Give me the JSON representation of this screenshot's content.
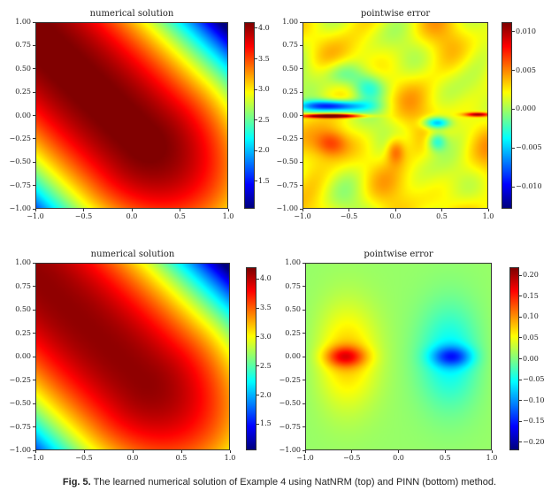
{
  "caption": {
    "label": "Fig. 5.",
    "text": "The learned numerical solution of Example 4 using NatNRM (top) and PINN (bottom) method."
  },
  "chart_data": [
    {
      "id": "top-solution",
      "type": "heatmap",
      "title": "numerical solution",
      "colormap": "jet",
      "xlim": [
        -1,
        1
      ],
      "ylim": [
        -1,
        1
      ],
      "xticks": [
        "−1.0",
        "−0.5",
        "0.0",
        "0.5",
        "1.0"
      ],
      "yticks": [
        "1.00",
        "0.75",
        "0.50",
        "0.25",
        "0.00",
        "−0.25",
        "−0.50",
        "−0.75",
        "−1.00"
      ],
      "colorbar": {
        "range": [
          1.05,
          4.1
        ],
        "ticks": [
          "4.0",
          "3.5",
          "3.0",
          "2.5",
          "2.0",
          "1.5"
        ],
        "tick_values": [
          4.0,
          3.5,
          3.0,
          2.5,
          2.0,
          1.5
        ]
      },
      "field": "solution"
    },
    {
      "id": "top-error",
      "type": "heatmap",
      "title": "pointwise error",
      "colormap": "jet",
      "xlim": [
        -1,
        1
      ],
      "ylim": [
        -1,
        1
      ],
      "xticks": [
        "−1.0",
        "−0.5",
        "0.0",
        "0.5",
        "1.0"
      ],
      "yticks": [
        "1.00",
        "0.75",
        "0.50",
        "0.25",
        "0.00",
        "−0.25",
        "−0.50",
        "−0.75",
        "−1.00"
      ],
      "colorbar": {
        "range": [
          -0.0128,
          0.0112
        ],
        "ticks": [
          "0.010",
          "0.005",
          "0.000",
          "−0.005",
          "−0.010"
        ],
        "tick_values": [
          0.01,
          0.005,
          0.0,
          -0.005,
          -0.01
        ]
      },
      "field": "natnrm_error"
    },
    {
      "id": "bottom-solution",
      "type": "heatmap",
      "title": "numerical solution",
      "colormap": "jet",
      "xlim": [
        -1,
        1
      ],
      "ylim": [
        -1,
        1
      ],
      "xticks": [
        "−1.0",
        "−0.5",
        "0.0",
        "0.5",
        "1.0"
      ],
      "yticks": [
        "1.00",
        "0.75",
        "0.50",
        "0.25",
        "0.00",
        "−0.25",
        "−0.50",
        "−0.75",
        "−1.00"
      ],
      "colorbar": {
        "range": [
          1.05,
          4.2
        ],
        "ticks": [
          "4.0",
          "3.5",
          "3.0",
          "2.5",
          "2.0",
          "1.5"
        ],
        "tick_values": [
          4.0,
          3.5,
          3.0,
          2.5,
          2.0,
          1.5
        ]
      },
      "field": "solution"
    },
    {
      "id": "bottom-error",
      "type": "heatmap",
      "title": "pointwise error",
      "colormap": "jet",
      "xlim": [
        -1,
        1
      ],
      "ylim": [
        -1,
        1
      ],
      "xticks": [
        "−1.0",
        "−0.5",
        "0.0",
        "0.5",
        "1.0"
      ],
      "yticks": [
        "1.00",
        "0.75",
        "0.50",
        "0.25",
        "0.00",
        "−0.25",
        "−0.50",
        "−0.75",
        "−1.00"
      ],
      "colorbar": {
        "range": [
          -0.22,
          0.22
        ],
        "ticks": [
          "0.20",
          "0.15",
          "0.10",
          "0.05",
          "0.00",
          "−0.05",
          "−0.10",
          "−0.15",
          "−0.20"
        ],
        "tick_values": [
          0.2,
          0.15,
          0.1,
          0.05,
          0.0,
          -0.05,
          -0.1,
          -0.15,
          -0.2
        ]
      },
      "field": "pinn_error"
    }
  ]
}
